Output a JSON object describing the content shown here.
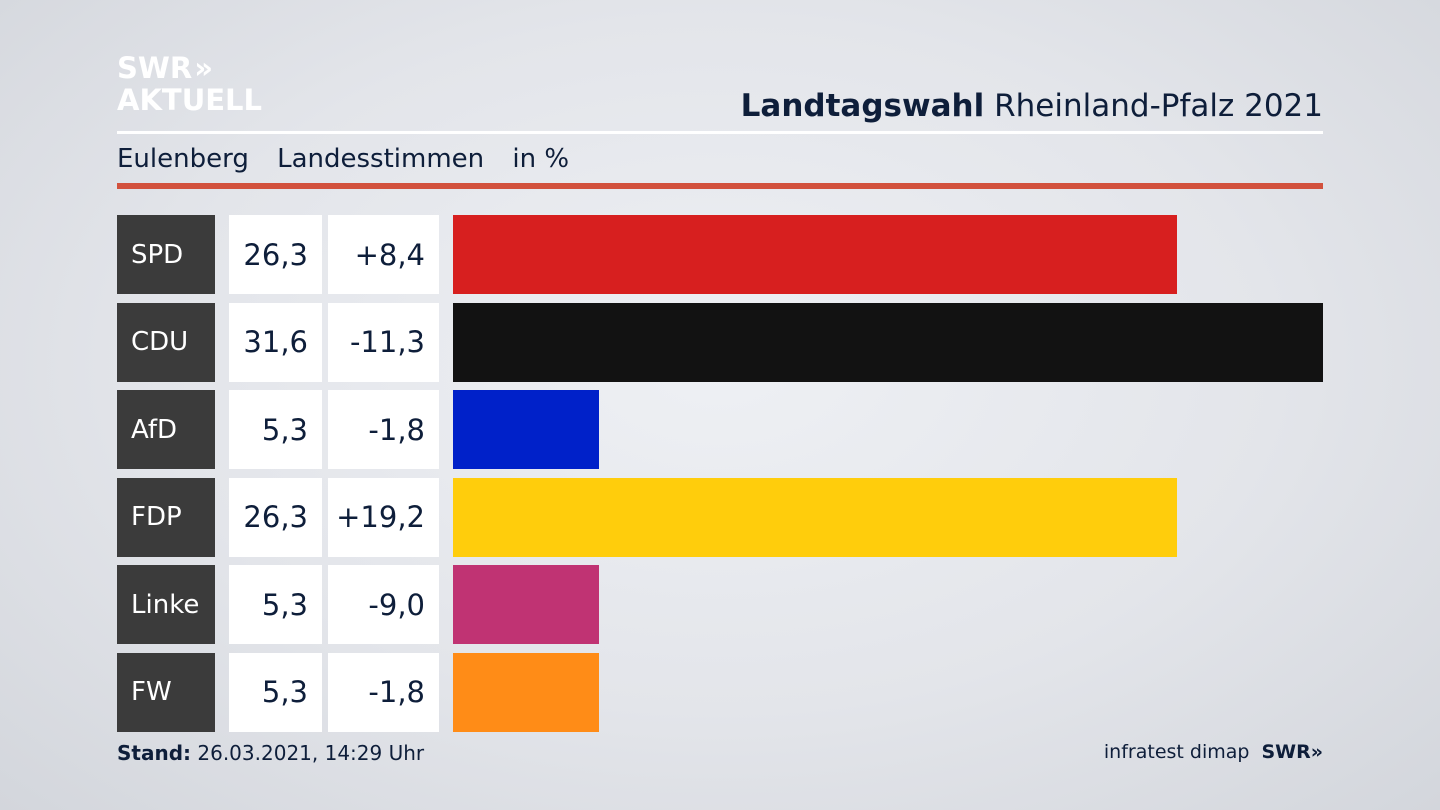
{
  "branding": {
    "logo_line1": "SWR",
    "logo_chevrons": "»",
    "logo_line2": "AKTUELL"
  },
  "header": {
    "title_bold": "Landtagswahl",
    "title_rest": "Rheinland-Pfalz 2021"
  },
  "subheader": {
    "place": "Eulenberg",
    "metric": "Landesstimmen",
    "unit": "in %"
  },
  "chart_data": {
    "type": "bar",
    "orientation": "horizontal",
    "title": "Landtagswahl Rheinland-Pfalz 2021",
    "categories": [
      "SPD",
      "CDU",
      "AfD",
      "FDP",
      "Linke",
      "FW"
    ],
    "values": [
      26.3,
      31.6,
      5.3,
      26.3,
      5.3,
      5.3
    ],
    "labels": [
      "26,3",
      "31,6",
      "5,3",
      "26,3",
      "5,3",
      "5,3"
    ],
    "changes": [
      "+8,4",
      "-11,3",
      "-1,8",
      "+19,2",
      "-9,0",
      "-1,8"
    ],
    "colors": [
      "#d71f1f",
      "#121212",
      "#0021c9",
      "#ffcd0c",
      "#c03373",
      "#ff8c17"
    ],
    "xlim": [
      0,
      31.6
    ]
  },
  "footer": {
    "stand_label": "Stand:",
    "stand_value": "26.03.2021, 14:29 Uhr"
  },
  "source": {
    "text": "infratest dimap",
    "brand": "SWR»"
  }
}
